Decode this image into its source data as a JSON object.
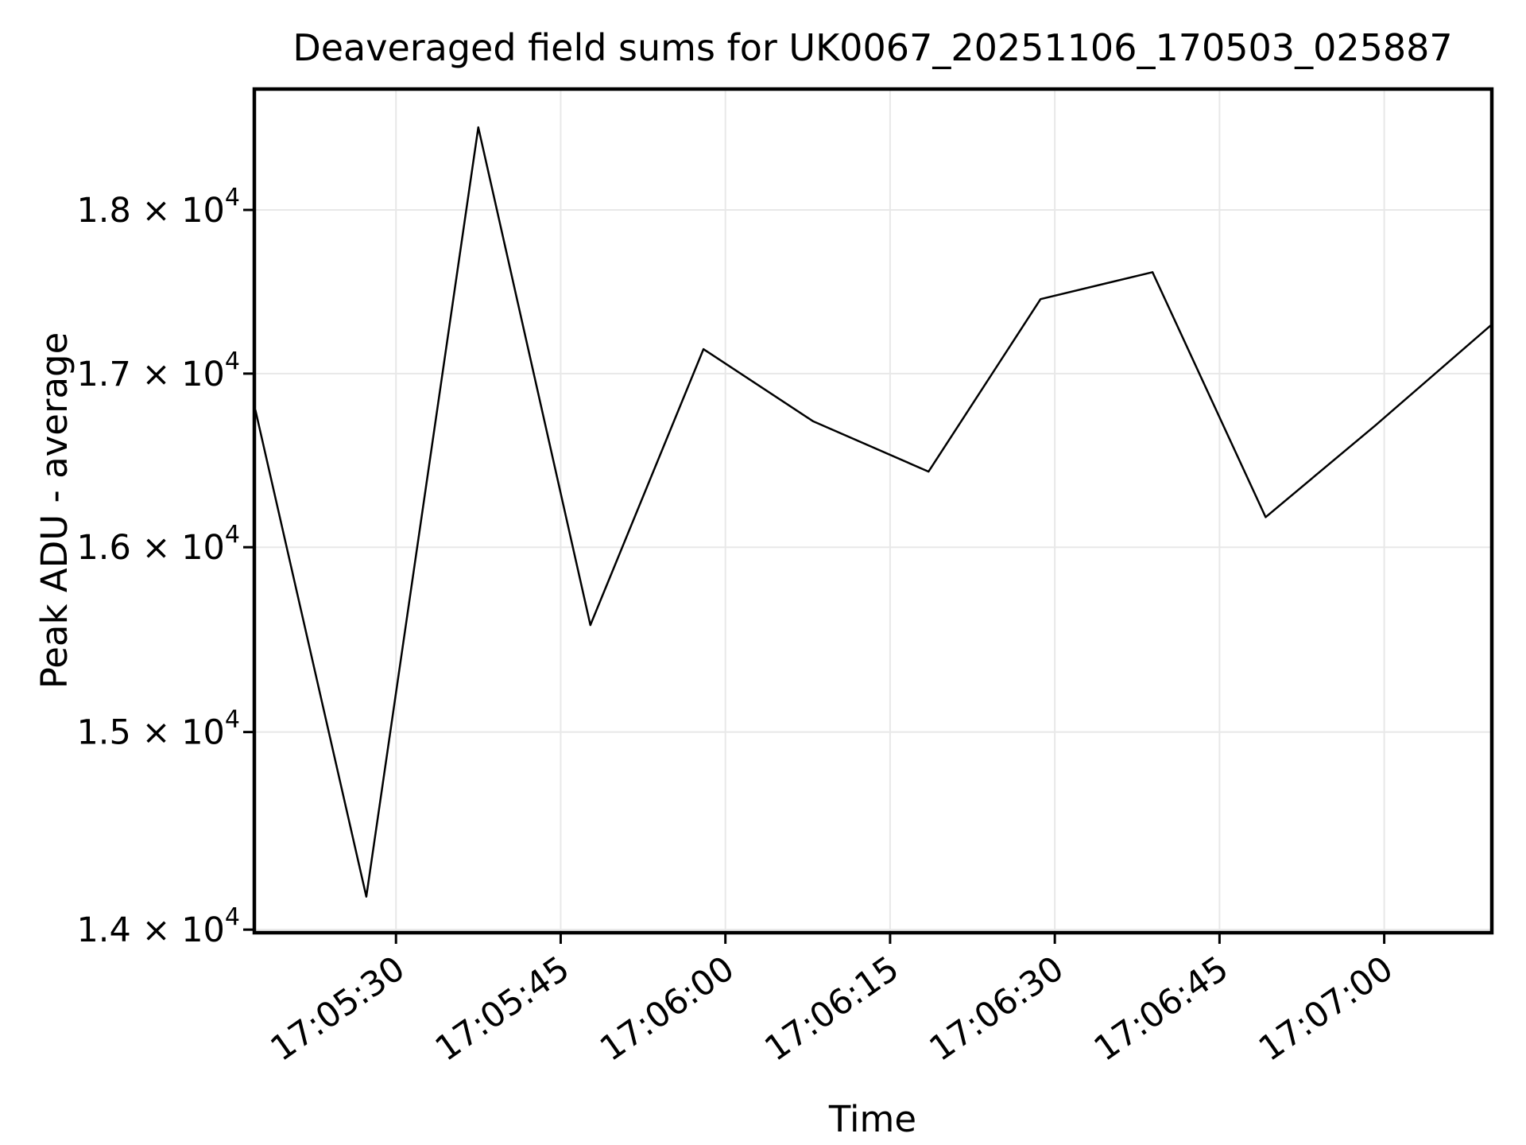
{
  "chart_data": {
    "type": "line",
    "title": "Deaveraged field sums for UK0067_20251106_170503_025887",
    "xlabel": "Time",
    "ylabel": "Peak ADU - average",
    "y_scale": "log",
    "grid": true,
    "legend": false,
    "background_color": "#ffffff",
    "line_color": "#000000",
    "grid_color": "#e8e8e8",
    "spine_color": "#000000",
    "xlim_seconds_after_1700": [
      317.1,
      429.8
    ],
    "xlim_labels": [
      "17:05:17",
      "17:07:10"
    ],
    "ylim": [
      13985,
      18776
    ],
    "x_ticks": [
      {
        "label": "17:05:30",
        "seconds": 330
      },
      {
        "label": "17:05:45",
        "seconds": 345
      },
      {
        "label": "17:06:00",
        "seconds": 360
      },
      {
        "label": "17:06:15",
        "seconds": 375
      },
      {
        "label": "17:06:30",
        "seconds": 390
      },
      {
        "label": "17:06:45",
        "seconds": 405
      },
      {
        "label": "17:07:00",
        "seconds": 420
      }
    ],
    "y_ticks": [
      {
        "value": 14000,
        "mantissa": "1.4 × 10",
        "exp": "4"
      },
      {
        "value": 15000,
        "mantissa": "1.5 × 10",
        "exp": "4"
      },
      {
        "value": 16000,
        "mantissa": "1.6 × 10",
        "exp": "4"
      },
      {
        "value": 17000,
        "mantissa": "1.7 × 10",
        "exp": "4"
      },
      {
        "value": 18000,
        "mantissa": "1.8 × 10",
        "exp": "4"
      }
    ],
    "series": [
      {
        "name": "Peak ADU - average",
        "color": "#000000",
        "points": [
          {
            "time": "17:05:17",
            "seconds": 317.2,
            "value": 16784
          },
          {
            "time": "17:05:27",
            "seconds": 327.3,
            "value": 14162
          },
          {
            "time": "17:05:37",
            "seconds": 337.5,
            "value": 18527
          },
          {
            "time": "17:05:48",
            "seconds": 347.7,
            "value": 15571
          },
          {
            "time": "17:05:58",
            "seconds": 358.0,
            "value": 17146
          },
          {
            "time": "17:06:08",
            "seconds": 368.0,
            "value": 16719
          },
          {
            "time": "17:06:18",
            "seconds": 378.5,
            "value": 16428
          },
          {
            "time": "17:06:29",
            "seconds": 388.7,
            "value": 17448
          },
          {
            "time": "17:06:39",
            "seconds": 398.9,
            "value": 17613
          },
          {
            "time": "17:06:49",
            "seconds": 409.2,
            "value": 16169
          },
          {
            "time": "17:06:59",
            "seconds": 419.2,
            "value": 16696
          },
          {
            "time": "17:07:10",
            "seconds": 429.8,
            "value": 17294
          }
        ]
      }
    ]
  }
}
